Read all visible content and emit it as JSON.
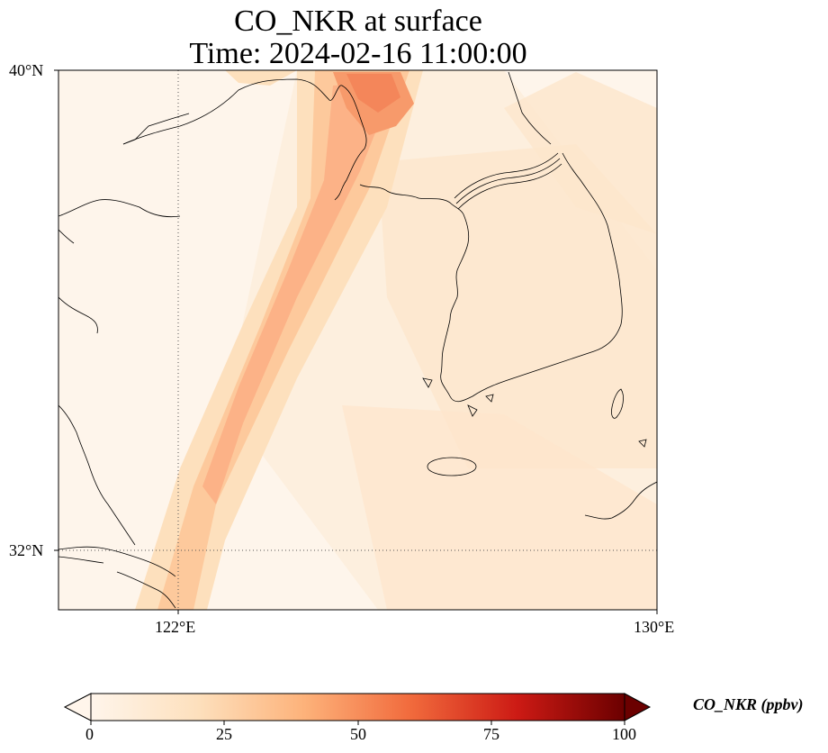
{
  "title_line1": "CO_NKR at surface",
  "title_line2": "Time: 2024-02-16 11:00:00",
  "map": {
    "extent_lon": [
      120.4,
      130.0
    ],
    "extent_lat": [
      31.2,
      40.0
    ],
    "lat_ticks": [
      {
        "value": 40,
        "label": "40°N"
      },
      {
        "value": 32,
        "label": "32°N"
      }
    ],
    "lon_ticks": [
      {
        "value": 122,
        "label": "122°E"
      },
      {
        "value": 130,
        "label": "130°E"
      }
    ],
    "gridlines": {
      "lat": [
        32
      ],
      "lon": [
        122
      ],
      "style": "dotted"
    },
    "field_colors": [
      "#fef5eb",
      "#fde6cc",
      "#fdd2a5",
      "#fdb57f",
      "#fb9e6a",
      "#f4865a"
    ]
  },
  "colorbar": {
    "label": "CO_NKR (ppbv)",
    "min": 0,
    "max": 100,
    "extend": "both",
    "ticks": [
      {
        "value": 0,
        "label": "0"
      },
      {
        "value": 25,
        "label": "25"
      },
      {
        "value": 50,
        "label": "50"
      },
      {
        "value": 75,
        "label": "75"
      },
      {
        "value": 100,
        "label": "100"
      }
    ],
    "colormap": "Oranges-Reds",
    "stops": [
      "#fff5eb",
      "#fdd9b0",
      "#fdae6b",
      "#f16a3c",
      "#cc1a14",
      "#6b0000"
    ]
  }
}
